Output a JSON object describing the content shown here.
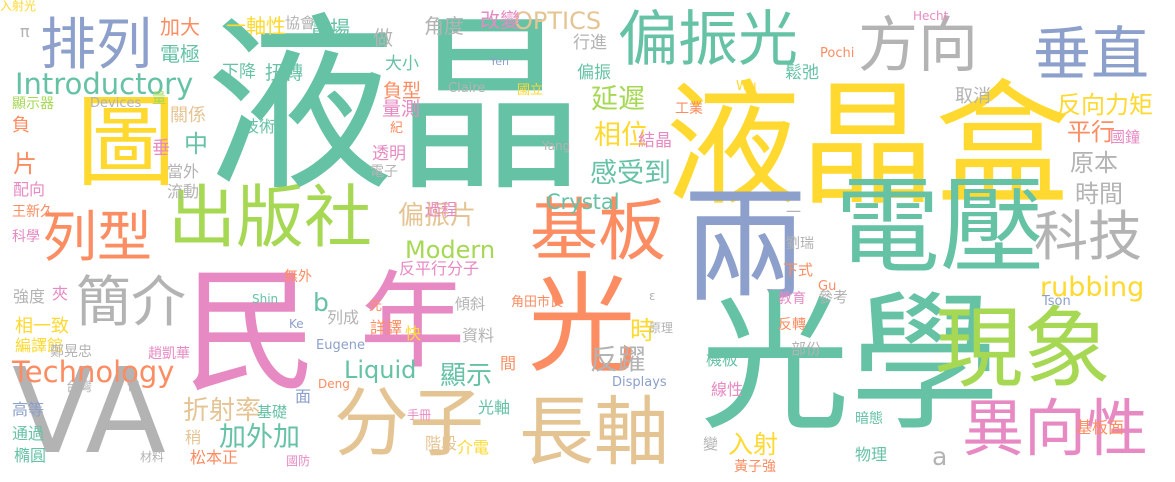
{
  "palette": {
    "teal": "#66c2a5",
    "yellow": "#ffd92f",
    "slate": "#8da0cb",
    "pink": "#e78ac3",
    "orange": "#fc8d62",
    "green": "#a6d854",
    "gray": "#b3b3b3",
    "tan": "#e5c494"
  },
  "words": [
    {
      "t": "液晶",
      "c": "teal"
    },
    {
      "t": "液晶盒",
      "c": "yellow"
    },
    {
      "t": "兩",
      "c": "slate"
    },
    {
      "t": "電壓",
      "c": "teal"
    },
    {
      "t": "光學",
      "c": "teal"
    },
    {
      "t": "民",
      "c": "pink"
    },
    {
      "t": "年",
      "c": "pink"
    },
    {
      "t": "光",
      "c": "orange"
    },
    {
      "t": "現象",
      "c": "green"
    },
    {
      "t": "VA",
      "c": "gray"
    },
    {
      "t": "圖",
      "c": "yellow"
    },
    {
      "t": "偏振光",
      "c": "teal"
    },
    {
      "t": "方向",
      "c": "gray"
    },
    {
      "t": "垂直",
      "c": "slate"
    },
    {
      "t": "排列",
      "c": "slate"
    },
    {
      "t": "出版社",
      "c": "green"
    },
    {
      "t": "列型",
      "c": "orange"
    },
    {
      "t": "基板",
      "c": "orange"
    },
    {
      "t": "分子",
      "c": "tan"
    },
    {
      "t": "長軸",
      "c": "tan"
    },
    {
      "t": "異向性",
      "c": "pink"
    },
    {
      "t": "科技",
      "c": "gray"
    },
    {
      "t": "簡介",
      "c": "gray"
    },
    {
      "t": "Introductory",
      "c": "teal"
    },
    {
      "t": "Technology",
      "c": "orange"
    },
    {
      "t": "Modern",
      "c": "green"
    },
    {
      "t": "Liquid",
      "c": "teal"
    },
    {
      "t": "Crystal",
      "c": "teal"
    },
    {
      "t": "OPTICS",
      "c": "tan"
    },
    {
      "t": "rubbing",
      "c": "yellow"
    },
    {
      "t": "延遲",
      "c": "green"
    },
    {
      "t": "相位",
      "c": "yellow"
    },
    {
      "t": "感受到",
      "c": "teal"
    },
    {
      "t": "偏振片",
      "c": "tan"
    },
    {
      "t": "折射率",
      "c": "tan"
    },
    {
      "t": "加外加",
      "c": "teal"
    },
    {
      "t": "顯示",
      "c": "teal"
    },
    {
      "t": "反躍",
      "c": "gray"
    },
    {
      "t": "時",
      "c": "yellow"
    },
    {
      "t": "入射",
      "c": "yellow"
    },
    {
      "t": "反向力矩",
      "c": "yellow"
    },
    {
      "t": "平行",
      "c": "orange"
    },
    {
      "t": "原本",
      "c": "gray"
    },
    {
      "t": "時間",
      "c": "gray"
    },
    {
      "t": "中",
      "c": "teal"
    },
    {
      "t": "片",
      "c": "orange"
    },
    {
      "t": "b",
      "c": "teal"
    },
    {
      "t": "a",
      "c": "gray"
    },
    {
      "t": "角度",
      "c": "gray"
    },
    {
      "t": "改變",
      "c": "pink"
    },
    {
      "t": "做",
      "c": "gray"
    },
    {
      "t": "電場",
      "c": "teal"
    },
    {
      "t": "一軸性",
      "c": "yellow"
    },
    {
      "t": "加大",
      "c": "orange"
    },
    {
      "t": "電極",
      "c": "teal"
    },
    {
      "t": "協會",
      "c": "gray"
    },
    {
      "t": "大小",
      "c": "teal"
    },
    {
      "t": "扭轉",
      "c": "teal"
    },
    {
      "t": "下降",
      "c": "teal"
    },
    {
      "t": "負型",
      "c": "orange"
    },
    {
      "t": "量測",
      "c": "pink"
    },
    {
      "t": "行進",
      "c": "gray"
    },
    {
      "t": "偏振",
      "c": "teal"
    },
    {
      "t": "鬆弛",
      "c": "teal"
    },
    {
      "t": "取消",
      "c": "gray"
    },
    {
      "t": "結晶",
      "c": "pink"
    },
    {
      "t": "工業",
      "c": "orange"
    },
    {
      "t": "國鐘",
      "c": "pink"
    },
    {
      "t": "Hecht",
      "c": "pink"
    },
    {
      "t": "Yen",
      "c": "slate"
    },
    {
      "t": "Pochi",
      "c": "orange"
    },
    {
      "t": "Claire",
      "c": "gray"
    },
    {
      "t": "國立",
      "c": "yellow"
    },
    {
      "t": "Wu",
      "c": "yellow"
    },
    {
      "t": "Yang",
      "c": "gray"
    },
    {
      "t": "Devices",
      "c": "gray"
    },
    {
      "t": "Shin",
      "c": "teal"
    },
    {
      "t": "Ke",
      "c": "slate"
    },
    {
      "t": "Eugene",
      "c": "slate"
    },
    {
      "t": "Displays",
      "c": "slate"
    },
    {
      "t": "Deng",
      "c": "orange"
    },
    {
      "t": "Gu",
      "c": "orange"
    },
    {
      "t": "Tson",
      "c": "slate"
    },
    {
      "t": "π",
      "c": "gray"
    },
    {
      "t": "顯示器",
      "c": "green"
    },
    {
      "t": "量",
      "c": "green"
    },
    {
      "t": "負",
      "c": "orange"
    },
    {
      "t": "關係",
      "c": "tan"
    },
    {
      "t": "技術",
      "c": "teal"
    },
    {
      "t": "紀",
      "c": "orange"
    },
    {
      "t": "垂",
      "c": "pink"
    },
    {
      "t": "透明",
      "c": "pink"
    },
    {
      "t": "電子",
      "c": "gray"
    },
    {
      "t": "當外",
      "c": "gray"
    },
    {
      "t": "流動",
      "c": "gray"
    },
    {
      "t": "配向",
      "c": "pink"
    },
    {
      "t": "王新久",
      "c": "orange"
    },
    {
      "t": "科學",
      "c": "pink"
    },
    {
      "t": "過程",
      "c": "pink"
    },
    {
      "t": "一",
      "c": "gray"
    },
    {
      "t": "劉瑞",
      "c": "gray"
    },
    {
      "t": "下式",
      "c": "orange"
    },
    {
      "t": "反平行分子",
      "c": "pink"
    },
    {
      "t": "無外",
      "c": "orange"
    },
    {
      "t": "強度",
      "c": "gray"
    },
    {
      "t": "夾",
      "c": "pink"
    },
    {
      "t": "相一致",
      "c": "yellow"
    },
    {
      "t": "編譯館",
      "c": "yellow"
    },
    {
      "t": "鄭晃忠",
      "c": "gray"
    },
    {
      "t": "趙凱華",
      "c": "pink"
    },
    {
      "t": "台灣",
      "c": "gray"
    },
    {
      "t": "件",
      "c": "gray"
    },
    {
      "t": "高等",
      "c": "slate"
    },
    {
      "t": "通過",
      "c": "teal"
    },
    {
      "t": "橢圓",
      "c": "teal"
    },
    {
      "t": "材料",
      "c": "gray"
    },
    {
      "t": "松本正",
      "c": "orange"
    },
    {
      "t": "國防",
      "c": "pink"
    },
    {
      "t": "稍",
      "c": "tan"
    },
    {
      "t": "基礎",
      "c": "teal"
    },
    {
      "t": "面",
      "c": "slate"
    },
    {
      "t": "手冊",
      "c": "pink"
    },
    {
      "t": "階段",
      "c": "tan"
    },
    {
      "t": "介電",
      "c": "yellow"
    },
    {
      "t": "光軸",
      "c": "teal"
    },
    {
      "t": "間",
      "c": "orange"
    },
    {
      "t": "資料",
      "c": "gray"
    },
    {
      "t": "快",
      "c": "yellow"
    },
    {
      "t": "詳譯",
      "c": "orange"
    },
    {
      "t": "列成",
      "c": "gray"
    },
    {
      "t": "元",
      "c": "orange"
    },
    {
      "t": "傾斜",
      "c": "gray"
    },
    {
      "t": "角田市良",
      "c": "orange"
    },
    {
      "t": "ε",
      "c": "gray"
    },
    {
      "t": "原理",
      "c": "gray"
    },
    {
      "t": "教育",
      "c": "pink"
    },
    {
      "t": "參考",
      "c": "gray"
    },
    {
      "t": "反轉",
      "c": "orange"
    },
    {
      "t": "部份",
      "c": "gray"
    },
    {
      "t": "線性",
      "c": "pink"
    },
    {
      "t": "機板",
      "c": "teal"
    },
    {
      "t": "暗態",
      "c": "teal"
    },
    {
      "t": "黃子強",
      "c": "orange"
    },
    {
      "t": "變",
      "c": "gray"
    },
    {
      "t": "物理",
      "c": "teal"
    },
    {
      "t": "基板面",
      "c": "orange"
    },
    {
      "t": "入射光",
      "c": "yellow"
    }
  ]
}
